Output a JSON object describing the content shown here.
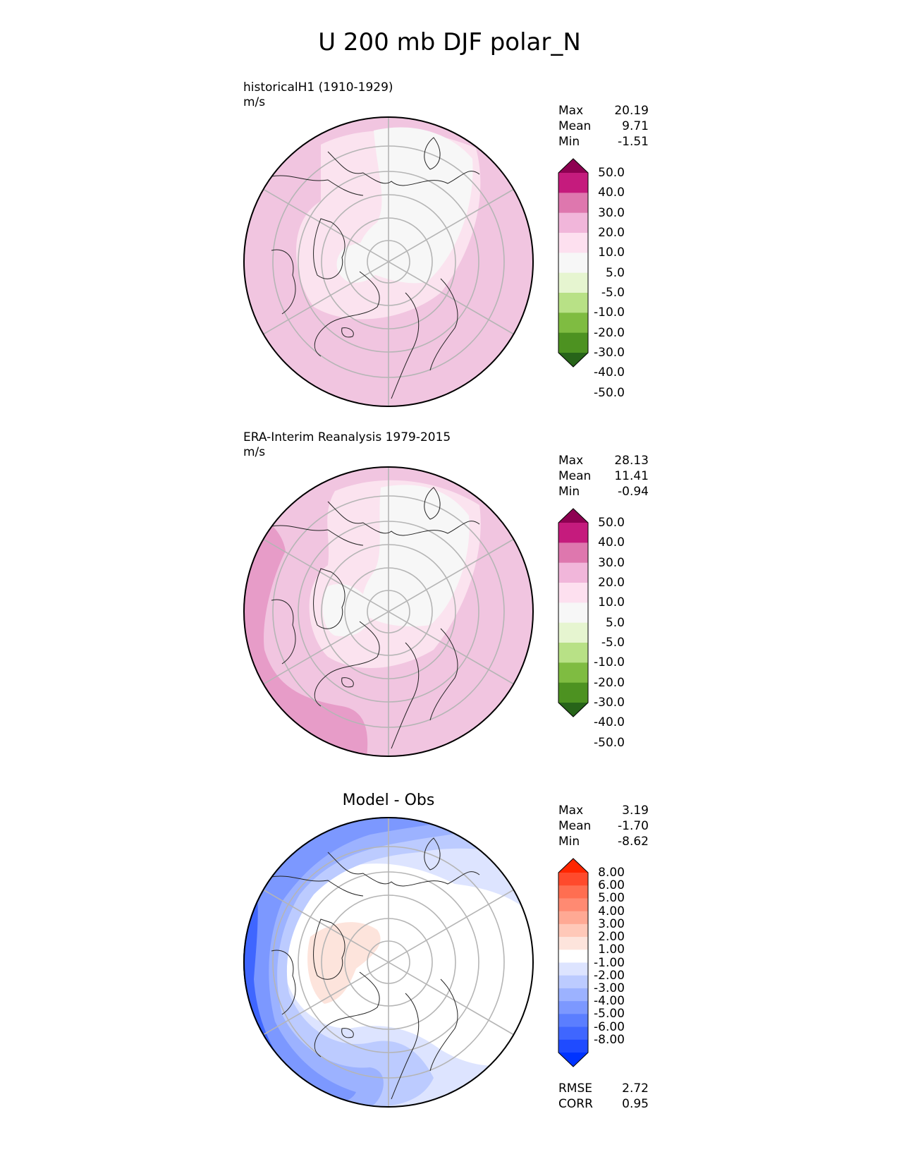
{
  "figure": {
    "title": "U 200 mb DJF polar_N"
  },
  "panels": [
    {
      "id": "model",
      "label": "historicalH1 (1910-1929)",
      "units": "m/s",
      "center_title": "",
      "stats": [
        {
          "label": "Max",
          "value": "20.19"
        },
        {
          "label": "Mean",
          "value": "9.71"
        },
        {
          "label": "Min",
          "value": "-1.51"
        }
      ],
      "colorbar": {
        "colors": [
          "#8e0152",
          "#c51b7d",
          "#de77ae",
          "#f1b6da",
          "#fde0ef",
          "#f7f7f7",
          "#e6f5d0",
          "#b8e186",
          "#7fbc41",
          "#4d9221",
          "#276419"
        ],
        "ticks": [
          "50.0",
          "40.0",
          "30.0",
          "20.0",
          "10.0",
          "5.0",
          "-5.0",
          "-10.0",
          "-20.0",
          "-30.0",
          "-40.0",
          "-50.0"
        ]
      }
    },
    {
      "id": "obs",
      "label": "ERA-Interim Reanalysis 1979-2015",
      "units": "m/s",
      "center_title": "",
      "stats": [
        {
          "label": "Max",
          "value": "28.13"
        },
        {
          "label": "Mean",
          "value": "11.41"
        },
        {
          "label": "Min",
          "value": "-0.94"
        }
      ],
      "colorbar": {
        "colors": [
          "#8e0152",
          "#c51b7d",
          "#de77ae",
          "#f1b6da",
          "#fde0ef",
          "#f7f7f7",
          "#e6f5d0",
          "#b8e186",
          "#7fbc41",
          "#4d9221",
          "#276419"
        ],
        "ticks": [
          "50.0",
          "40.0",
          "30.0",
          "20.0",
          "10.0",
          "5.0",
          "-5.0",
          "-10.0",
          "-20.0",
          "-30.0",
          "-40.0",
          "-50.0"
        ]
      }
    },
    {
      "id": "diff",
      "label": "",
      "units": "",
      "center_title": "Model - Obs",
      "stats": [
        {
          "label": "Max",
          "value": "3.19"
        },
        {
          "label": "Mean",
          "value": "-1.70"
        },
        {
          "label": "Min",
          "value": "-8.62"
        }
      ],
      "colorbar": {
        "colors": [
          "#ff2600",
          "#ff4a2c",
          "#ff6e51",
          "#ff8a72",
          "#ffa994",
          "#ffc8b8",
          "#fde4dc",
          "#ffffff",
          "#dde4ff",
          "#bccbff",
          "#9cb2ff",
          "#7c98ff",
          "#5b7eff",
          "#3f66ff",
          "#1f4bff",
          "#0033ff"
        ],
        "ticks": [
          "8.00",
          "6.00",
          "5.00",
          "4.00",
          "3.00",
          "2.00",
          "1.00",
          "-1.00",
          "-2.00",
          "-3.00",
          "-4.00",
          "-5.00",
          "-6.00",
          "-8.00"
        ]
      },
      "extra_stats": [
        {
          "label": "RMSE",
          "value": "2.72"
        },
        {
          "label": "CORR",
          "value": "0.95"
        }
      ]
    }
  ]
}
